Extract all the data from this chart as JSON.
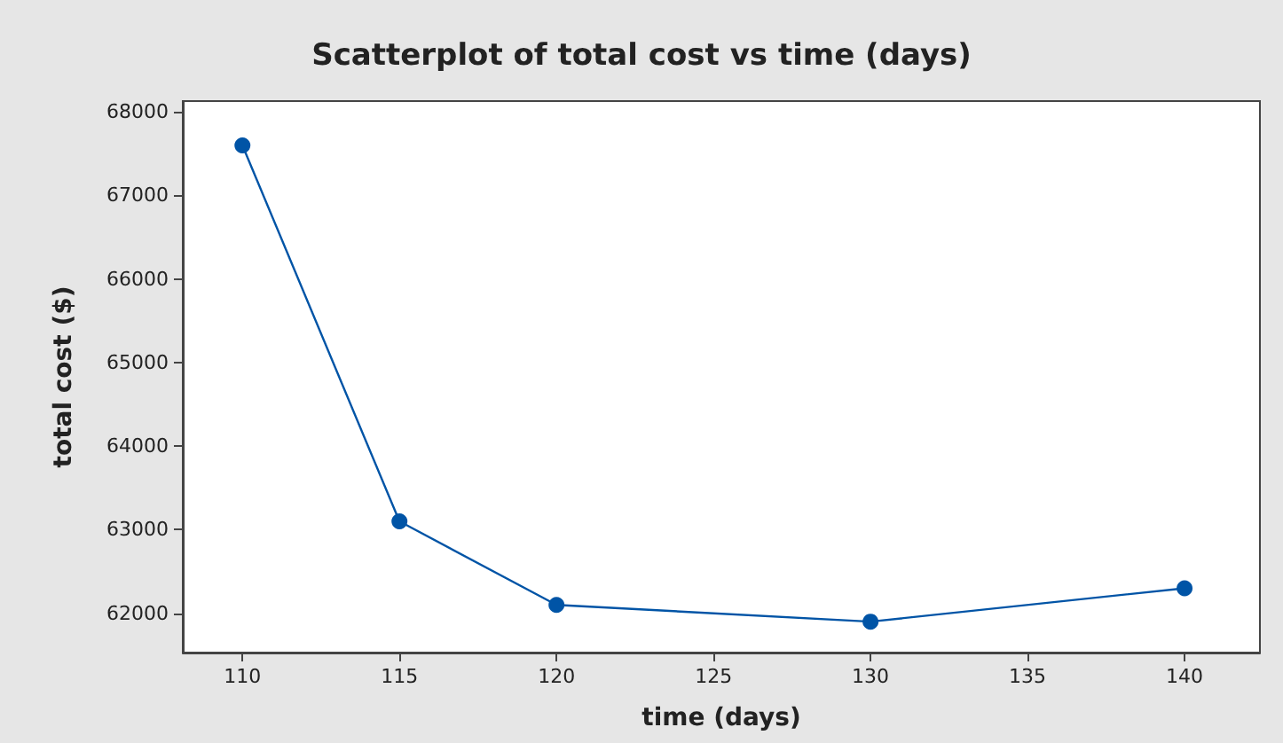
{
  "chart_data": {
    "type": "line",
    "title": "Scatterplot of total cost vs time (days)",
    "xlabel": "time (days)",
    "ylabel": "total cost ($)",
    "x": [
      110,
      115,
      120,
      130,
      140
    ],
    "series": [
      {
        "color": "#0054a6",
        "values": [
          67600,
          63100,
          62100,
          61900,
          62300
        ]
      }
    ],
    "xlim": [
      108.1,
      142.4
    ],
    "xticks": [
      110,
      115,
      120,
      125,
      130,
      135,
      140
    ],
    "ylim": [
      61530,
      68130
    ],
    "yticks": [
      62000,
      63000,
      64000,
      65000,
      66000,
      67000,
      68000
    ],
    "grid": false,
    "marker": "circle",
    "line_style": "solid"
  }
}
